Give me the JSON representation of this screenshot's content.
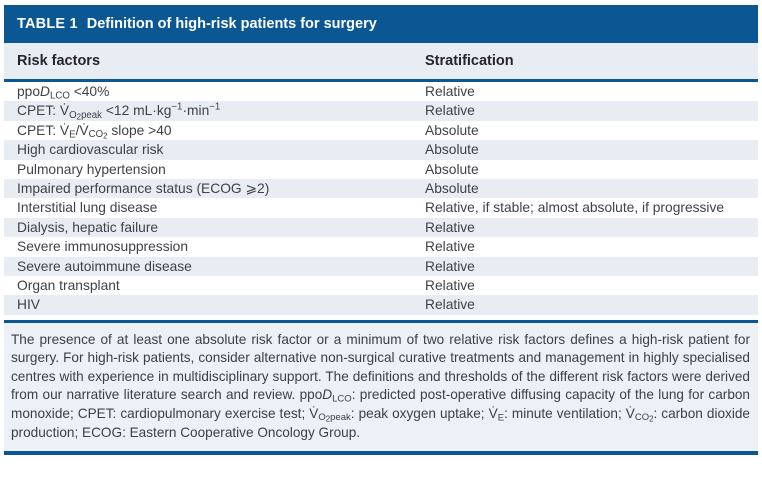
{
  "table": {
    "label": "TABLE 1",
    "title": "Definition of high-risk patients for surgery",
    "columns": [
      "Risk factors",
      "Stratification"
    ],
    "rows": [
      {
        "risk": "ppo<i>D</i><sub>LCO</sub> &lt;40%",
        "strat": "Relative"
      },
      {
        "risk": "CPET: V̇<sub>O<sub>2</sub>peak</sub> &lt;12 mL·kg<sup>−1</sup>·min<sup>−1</sup>",
        "strat": "Relative"
      },
      {
        "risk": "CPET: V̇<sub>E</sub>/V̇<sub>CO<sub>2</sub></sub> slope &gt;40",
        "strat": "Absolute"
      },
      {
        "risk": "High cardiovascular risk",
        "strat": "Absolute"
      },
      {
        "risk": "Pulmonary hypertension",
        "strat": "Absolute"
      },
      {
        "risk": "Impaired performance status (ECOG ⩾2)",
        "strat": "Absolute"
      },
      {
        "risk": "Interstitial lung disease",
        "strat": "Relative, if stable; almost absolute, if progressive"
      },
      {
        "risk": "Dialysis, hepatic failure",
        "strat": "Relative"
      },
      {
        "risk": "Severe immunosuppression",
        "strat": "Relative"
      },
      {
        "risk": "Severe autoimmune disease",
        "strat": "Relative"
      },
      {
        "risk": "Organ transplant",
        "strat": "Relative"
      },
      {
        "risk": "HIV",
        "strat": "Relative"
      }
    ],
    "footnote": "The presence of at least one absolute risk factor or a minimum of two relative risk factors defines a high-risk patient for surgery. For high-risk patients, consider alternative non-surgical curative treatments and management in highly specialised centres with experience in multidisciplinary support. The definitions and thresholds of the different risk factors were derived from our narrative literature search and review. ppo<i>D</i><sub>LCO</sub>: predicted post-operative diffusing capacity of the lung for carbon monoxide; CPET: cardiopulmonary exercise test; V̇<sub>O<sub>2</sub>peak</sub>: peak oxygen uptake; V̇<sub>E</sub>: minute ventilation; V̇<sub>CO<sub>2</sub></sub>: carbon dioxide production; ECOG: Eastern Cooperative Oncology Group."
  },
  "colors": {
    "header_blue": "#0a5794",
    "stripe_light_blue": "#e8ecf3",
    "footnote_background": "#edf1f7",
    "body_text": "#3e4248",
    "header_text": "#ffffff"
  }
}
